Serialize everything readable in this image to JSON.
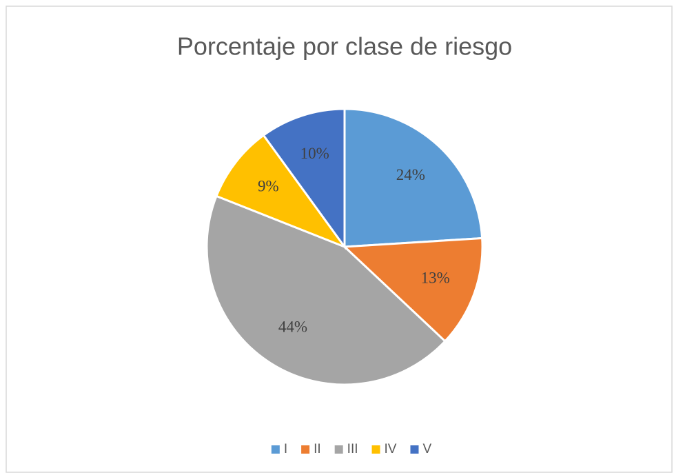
{
  "chart_data": {
    "type": "pie",
    "title": "Porcentaje por clase de riesgo",
    "categories": [
      "I",
      "II",
      "III",
      "IV",
      "V"
    ],
    "values": [
      24,
      13,
      44,
      9,
      10
    ],
    "value_labels": [
      "24%",
      "13%",
      "44%",
      "9%",
      "10%"
    ],
    "colors": [
      "#5b9bd5",
      "#ed7d31",
      "#a5a5a5",
      "#ffc000",
      "#4472c4"
    ],
    "legend": "bottom"
  }
}
